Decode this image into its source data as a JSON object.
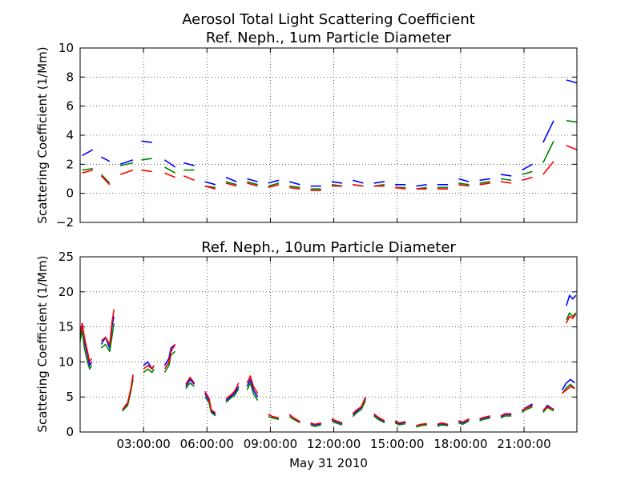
{
  "figure": {
    "title_line1": "Aerosol Total Light Scattering Coefficient",
    "xlabel": "May 31 2010",
    "colors": {
      "blue": "#0000ff",
      "green": "#008000",
      "red": "#ff0000",
      "grid": "#000000"
    }
  },
  "chart_data": [
    {
      "type": "line",
      "title": "Ref. Neph., 1um Particle Diameter",
      "ylabel": "Scattering Coefficient (1/Mm)",
      "x_unit": "hours since 00:00 on May 31 2010",
      "xlim": [
        0,
        23.5
      ],
      "ylim": [
        -2,
        10
      ],
      "yticks": [
        "−2",
        "0",
        "2",
        "4",
        "6",
        "8",
        "10"
      ],
      "xticks": [
        "03:00:00",
        "06:00:00",
        "09:00:00",
        "12:00:00",
        "15:00:00",
        "18:00:00",
        "21:00:00"
      ],
      "xtick_hours": [
        3,
        6,
        9,
        12,
        15,
        18,
        21
      ],
      "grid": true,
      "segments": [
        {
          "x": [
            0.1,
            0.6
          ],
          "blue": [
            2.6,
            3.0
          ],
          "green": [
            1.6,
            1.7
          ],
          "red": [
            1.4,
            1.6
          ]
        },
        {
          "x": [
            1.0,
            1.4
          ],
          "blue": [
            2.5,
            2.2
          ],
          "green": [
            1.3,
            0.7
          ],
          "red": [
            1.2,
            0.6
          ]
        },
        {
          "x": [
            1.9,
            2.5
          ],
          "blue": [
            2.0,
            2.3
          ],
          "green": [
            1.9,
            2.1
          ],
          "red": [
            1.3,
            1.6
          ]
        },
        {
          "x": [
            2.9,
            3.4
          ],
          "blue": [
            3.6,
            3.5
          ],
          "green": [
            2.3,
            2.4
          ],
          "red": [
            1.6,
            1.5
          ]
        },
        {
          "x": [
            4.0,
            4.5
          ],
          "blue": [
            2.3,
            1.8
          ],
          "green": [
            1.8,
            1.4
          ],
          "red": [
            1.4,
            1.1
          ]
        },
        {
          "x": [
            4.9,
            5.4
          ],
          "blue": [
            2.1,
            1.9
          ],
          "green": [
            1.6,
            1.6
          ],
          "red": [
            1.2,
            0.9
          ]
        },
        {
          "x": [
            5.9,
            6.4
          ],
          "blue": [
            0.8,
            0.6
          ],
          "green": [
            0.5,
            0.4
          ],
          "red": [
            0.5,
            0.3
          ]
        },
        {
          "x": [
            6.9,
            7.4
          ],
          "blue": [
            1.1,
            0.8
          ],
          "green": [
            0.8,
            0.6
          ],
          "red": [
            0.7,
            0.5
          ]
        },
        {
          "x": [
            7.9,
            8.4
          ],
          "blue": [
            1.0,
            0.8
          ],
          "green": [
            0.8,
            0.6
          ],
          "red": [
            0.7,
            0.5
          ]
        },
        {
          "x": [
            8.9,
            9.4
          ],
          "blue": [
            0.7,
            0.9
          ],
          "green": [
            0.5,
            0.7
          ],
          "red": [
            0.4,
            0.6
          ]
        },
        {
          "x": [
            9.9,
            10.4
          ],
          "blue": [
            0.8,
            0.6
          ],
          "green": [
            0.5,
            0.4
          ],
          "red": [
            0.4,
            0.3
          ]
        },
        {
          "x": [
            10.9,
            11.4
          ],
          "blue": [
            0.5,
            0.5
          ],
          "green": [
            0.3,
            0.3
          ],
          "red": [
            0.2,
            0.2
          ]
        },
        {
          "x": [
            11.9,
            12.4
          ],
          "blue": [
            0.8,
            0.7
          ],
          "green": [
            0.6,
            0.5
          ],
          "red": [
            0.5,
            0.5
          ]
        },
        {
          "x": [
            12.9,
            13.4
          ],
          "blue": [
            0.9,
            0.7
          ],
          "green": [
            0.6,
            0.5
          ],
          "red": [
            0.6,
            0.5
          ]
        },
        {
          "x": [
            13.9,
            14.4
          ],
          "blue": [
            0.7,
            0.8
          ],
          "green": [
            0.5,
            0.6
          ],
          "red": [
            0.5,
            0.5
          ]
        },
        {
          "x": [
            14.9,
            15.4
          ],
          "blue": [
            0.6,
            0.6
          ],
          "green": [
            0.4,
            0.4
          ],
          "red": [
            0.4,
            0.3
          ]
        },
        {
          "x": [
            15.9,
            16.4
          ],
          "blue": [
            0.5,
            0.6
          ],
          "green": [
            0.3,
            0.4
          ],
          "red": [
            0.3,
            0.3
          ]
        },
        {
          "x": [
            16.9,
            17.4
          ],
          "blue": [
            0.6,
            0.6
          ],
          "green": [
            0.4,
            0.4
          ],
          "red": [
            0.3,
            0.3
          ]
        },
        {
          "x": [
            17.9,
            18.4
          ],
          "blue": [
            1.0,
            0.8
          ],
          "green": [
            0.7,
            0.6
          ],
          "red": [
            0.6,
            0.5
          ]
        },
        {
          "x": [
            18.9,
            19.4
          ],
          "blue": [
            0.9,
            1.0
          ],
          "green": [
            0.7,
            0.8
          ],
          "red": [
            0.6,
            0.7
          ]
        },
        {
          "x": [
            19.9,
            20.4
          ],
          "blue": [
            1.3,
            1.2
          ],
          "green": [
            1.0,
            0.9
          ],
          "red": [
            0.8,
            0.7
          ]
        },
        {
          "x": [
            20.9,
            21.4
          ],
          "blue": [
            1.6,
            2.0
          ],
          "green": [
            1.3,
            1.5
          ],
          "red": [
            0.9,
            1.1
          ]
        },
        {
          "x": [
            21.9,
            22.4
          ],
          "blue": [
            3.5,
            5.0
          ],
          "green": [
            2.1,
            3.6
          ],
          "red": [
            1.3,
            2.2
          ]
        },
        {
          "x": [
            23.0,
            23.5
          ],
          "blue": [
            7.8,
            7.6
          ],
          "green": [
            5.0,
            4.9
          ],
          "red": [
            3.3,
            3.0
          ]
        }
      ]
    },
    {
      "type": "line",
      "title": "Ref. Neph., 10um Particle Diameter",
      "ylabel": "Scattering Coefficient (1/Mm)",
      "x_unit": "hours since 00:00 on May 31 2010",
      "xlim": [
        0,
        23.5
      ],
      "ylim": [
        0,
        25
      ],
      "yticks": [
        "0",
        "5",
        "10",
        "15",
        "20",
        "25"
      ],
      "xticks": [
        "03:00:00",
        "06:00:00",
        "09:00:00",
        "12:00:00",
        "15:00:00",
        "18:00:00",
        "21:00:00"
      ],
      "xtick_hours": [
        3,
        6,
        9,
        12,
        15,
        18,
        21
      ],
      "grid": true,
      "segments": [
        {
          "x": [
            0.0,
            0.1,
            0.2,
            0.35,
            0.45,
            0.55
          ],
          "blue": [
            13.5,
            15.5,
            13.0,
            11.0,
            9.5,
            10.0
          ],
          "green": [
            13.0,
            14.5,
            12.0,
            10.0,
            9.0,
            9.5
          ],
          "red": [
            14.0,
            15.5,
            13.5,
            11.5,
            10.0,
            10.5
          ]
        },
        {
          "x": [
            1.0,
            1.2,
            1.4,
            1.5,
            1.6
          ],
          "blue": [
            12.5,
            13.5,
            12.0,
            15.0,
            16.5
          ],
          "green": [
            12.0,
            12.5,
            11.5,
            13.5,
            15.5
          ],
          "red": [
            13.0,
            13.5,
            12.5,
            15.5,
            17.5
          ]
        },
        {
          "x": [
            2.0,
            2.25,
            2.4,
            2.5
          ],
          "blue": [
            3.0,
            4.0,
            6.0,
            8.0
          ],
          "green": [
            3.0,
            3.8,
            5.8,
            7.5
          ],
          "red": [
            3.2,
            4.2,
            6.2,
            8.2
          ]
        },
        {
          "x": [
            3.0,
            3.2,
            3.4,
            3.5
          ],
          "blue": [
            9.5,
            10.0,
            9.0,
            9.5
          ],
          "green": [
            8.5,
            9.0,
            8.5,
            9.0
          ],
          "red": [
            9.0,
            9.5,
            9.0,
            9.5
          ]
        },
        {
          "x": [
            4.0,
            4.2,
            4.3,
            4.5
          ],
          "blue": [
            9.5,
            10.5,
            12.0,
            12.5
          ],
          "green": [
            8.5,
            9.5,
            11.0,
            11.5
          ],
          "red": [
            9.0,
            10.0,
            11.5,
            12.5
          ]
        },
        {
          "x": [
            5.0,
            5.2,
            5.4
          ],
          "blue": [
            6.5,
            7.5,
            6.8
          ],
          "green": [
            6.2,
            7.0,
            6.5
          ],
          "red": [
            6.8,
            7.8,
            7.0
          ]
        },
        {
          "x": [
            5.9,
            6.1,
            6.2,
            6.4
          ],
          "blue": [
            5.5,
            4.5,
            3.0,
            2.5
          ],
          "green": [
            5.0,
            4.2,
            2.8,
            2.3
          ],
          "red": [
            5.8,
            4.8,
            3.2,
            2.7
          ]
        },
        {
          "x": [
            6.9,
            7.1,
            7.3,
            7.5
          ],
          "blue": [
            4.5,
            5.0,
            5.5,
            6.5
          ],
          "green": [
            4.2,
            4.8,
            5.2,
            6.2
          ],
          "red": [
            4.8,
            5.2,
            5.8,
            7.0
          ]
        },
        {
          "x": [
            7.9,
            8.05,
            8.2,
            8.4
          ],
          "blue": [
            6.5,
            7.5,
            6.0,
            5.0
          ],
          "green": [
            6.0,
            7.0,
            5.5,
            4.5
          ],
          "red": [
            7.0,
            8.0,
            6.5,
            5.5
          ]
        },
        {
          "x": [
            8.9,
            9.1,
            9.4
          ],
          "blue": [
            2.5,
            2.2,
            2.0
          ],
          "green": [
            2.2,
            2.0,
            1.8
          ],
          "red": [
            2.5,
            2.2,
            2.0
          ]
        },
        {
          "x": [
            9.9,
            10.1,
            10.4
          ],
          "blue": [
            2.5,
            2.0,
            1.5
          ],
          "green": [
            2.2,
            1.8,
            1.3
          ],
          "red": [
            2.5,
            2.0,
            1.5
          ]
        },
        {
          "x": [
            10.9,
            11.1,
            11.4
          ],
          "blue": [
            1.2,
            1.0,
            1.2
          ],
          "green": [
            1.0,
            0.8,
            1.0
          ],
          "red": [
            1.3,
            1.1,
            1.3
          ]
        },
        {
          "x": [
            11.9,
            12.1,
            12.4
          ],
          "blue": [
            1.8,
            1.5,
            1.2
          ],
          "green": [
            1.6,
            1.3,
            1.0
          ],
          "red": [
            1.9,
            1.6,
            1.3
          ]
        },
        {
          "x": [
            12.9,
            13.1,
            13.3,
            13.5
          ],
          "blue": [
            2.5,
            3.0,
            3.5,
            4.8
          ],
          "green": [
            2.2,
            2.8,
            3.2,
            4.5
          ],
          "red": [
            2.6,
            3.2,
            3.6,
            5.0
          ]
        },
        {
          "x": [
            13.9,
            14.1,
            14.4
          ],
          "blue": [
            2.5,
            2.0,
            1.5
          ],
          "green": [
            2.3,
            1.8,
            1.3
          ],
          "red": [
            2.6,
            2.1,
            1.6
          ]
        },
        {
          "x": [
            14.9,
            15.1,
            15.4
          ],
          "blue": [
            1.5,
            1.2,
            1.4
          ],
          "green": [
            1.3,
            1.0,
            1.2
          ],
          "red": [
            1.6,
            1.3,
            1.5
          ]
        },
        {
          "x": [
            15.9,
            16.1,
            16.4
          ],
          "blue": [
            0.8,
            1.0,
            1.1
          ],
          "green": [
            0.7,
            0.9,
            1.0
          ],
          "red": [
            0.9,
            1.1,
            1.2
          ]
        },
        {
          "x": [
            16.9,
            17.1,
            17.4
          ],
          "blue": [
            1.0,
            1.2,
            1.0
          ],
          "green": [
            0.8,
            1.0,
            0.9
          ],
          "red": [
            1.1,
            1.3,
            1.1
          ]
        },
        {
          "x": [
            17.9,
            18.1,
            18.4
          ],
          "blue": [
            1.5,
            1.3,
            1.8
          ],
          "green": [
            1.3,
            1.1,
            1.6
          ],
          "red": [
            1.6,
            1.4,
            1.9
          ]
        },
        {
          "x": [
            18.9,
            19.1,
            19.4
          ],
          "blue": [
            1.8,
            2.0,
            2.2
          ],
          "green": [
            1.6,
            1.8,
            2.0
          ],
          "red": [
            1.9,
            2.1,
            2.3
          ]
        },
        {
          "x": [
            19.9,
            20.1,
            20.4
          ],
          "blue": [
            2.2,
            2.5,
            2.5
          ],
          "green": [
            2.0,
            2.3,
            2.3
          ],
          "red": [
            2.3,
            2.6,
            2.6
          ]
        },
        {
          "x": [
            20.9,
            21.1,
            21.4
          ],
          "blue": [
            3.0,
            3.5,
            4.0
          ],
          "green": [
            2.8,
            3.2,
            3.6
          ],
          "red": [
            3.1,
            3.4,
            3.8
          ]
        },
        {
          "x": [
            21.9,
            22.1,
            22.4
          ],
          "blue": [
            3.0,
            3.8,
            3.2
          ],
          "green": [
            2.8,
            3.5,
            3.0
          ],
          "red": [
            3.1,
            3.6,
            3.3
          ]
        },
        {
          "x": [
            22.8,
            23.0,
            23.2,
            23.4
          ],
          "blue": [
            6.0,
            7.0,
            7.5,
            7.0
          ],
          "green": [
            5.5,
            6.3,
            6.8,
            6.2
          ],
          "red": [
            5.5,
            6.0,
            6.5,
            6.2
          ]
        },
        {
          "x": [
            23.0,
            23.15,
            23.3,
            23.45
          ],
          "blue": [
            18.0,
            19.5,
            19.0,
            19.5
          ],
          "green": [
            16.0,
            17.0,
            16.5,
            17.0
          ],
          "red": [
            15.5,
            16.5,
            16.2,
            16.8
          ]
        }
      ]
    }
  ]
}
